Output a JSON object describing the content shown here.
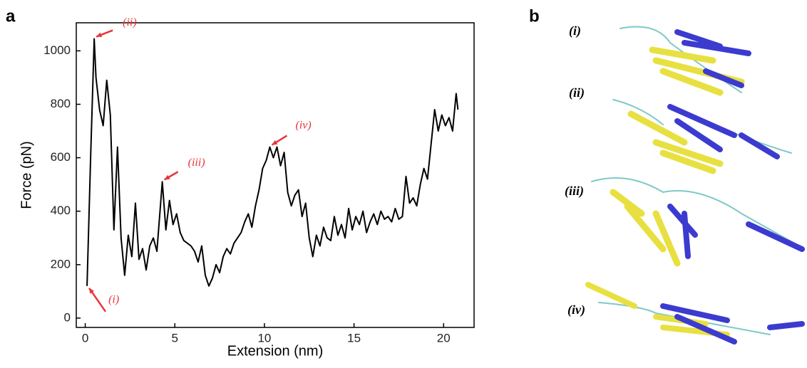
{
  "panel_labels": [
    "a",
    "b"
  ],
  "chart_data": {
    "type": "line",
    "xlabel": "Extension (nm)",
    "ylabel": "Force (pN)",
    "x": [
      0.1,
      0.3,
      0.5,
      0.6,
      0.8,
      1.0,
      1.2,
      1.4,
      1.6,
      1.8,
      2.0,
      2.2,
      2.4,
      2.6,
      2.8,
      3.0,
      3.2,
      3.4,
      3.6,
      3.8,
      4.0,
      4.3,
      4.5,
      4.7,
      4.9,
      5.1,
      5.3,
      5.5,
      5.7,
      5.9,
      6.1,
      6.3,
      6.5,
      6.7,
      6.9,
      7.1,
      7.3,
      7.5,
      7.7,
      7.9,
      8.1,
      8.3,
      8.5,
      8.7,
      8.9,
      9.1,
      9.3,
      9.5,
      9.7,
      9.9,
      10.1,
      10.3,
      10.5,
      10.7,
      10.9,
      11.1,
      11.3,
      11.5,
      11.7,
      11.9,
      12.1,
      12.3,
      12.5,
      12.7,
      12.9,
      13.1,
      13.3,
      13.5,
      13.7,
      13.9,
      14.1,
      14.3,
      14.5,
      14.7,
      14.9,
      15.1,
      15.3,
      15.5,
      15.7,
      15.9,
      16.1,
      16.3,
      16.5,
      16.7,
      16.9,
      17.1,
      17.3,
      17.5,
      17.7,
      17.9,
      18.1,
      18.3,
      18.5,
      18.7,
      18.9,
      19.1,
      19.3,
      19.5,
      19.7,
      19.9,
      20.1,
      20.3,
      20.5,
      20.7,
      20.8
    ],
    "series": [
      {
        "color": "#000000",
        "values": [
          120,
          600,
          1045,
          900,
          780,
          720,
          890,
          760,
          330,
          640,
          300,
          160,
          310,
          230,
          430,
          220,
          260,
          180,
          270,
          300,
          250,
          510,
          330,
          440,
          350,
          390,
          320,
          290,
          280,
          270,
          250,
          210,
          270,
          160,
          120,
          150,
          200,
          170,
          230,
          260,
          240,
          280,
          300,
          320,
          360,
          390,
          340,
          420,
          480,
          560,
          590,
          640,
          600,
          640,
          570,
          620,
          470,
          420,
          460,
          480,
          380,
          430,
          300,
          230,
          310,
          270,
          340,
          300,
          290,
          380,
          310,
          350,
          300,
          410,
          330,
          380,
          350,
          400,
          320,
          360,
          390,
          350,
          400,
          370,
          380,
          360,
          410,
          370,
          380,
          530,
          430,
          450,
          420,
          500,
          560,
          520,
          650,
          780,
          700,
          760,
          720,
          750,
          700,
          840,
          780
        ]
      }
    ],
    "xlim": [
      -0.5,
      21.7
    ],
    "ylim": [
      -35,
      1105
    ],
    "xticks": [
      0,
      5,
      10,
      15,
      20
    ],
    "yticks": [
      0,
      200,
      400,
      600,
      800,
      1000
    ],
    "annotations": [
      {
        "text": "(i)",
        "x": 0.1,
        "y": 120
      },
      {
        "text": "(ii)",
        "x": 0.5,
        "y": 1045
      },
      {
        "text": "(iii)",
        "x": 4.3,
        "y": 510
      },
      {
        "text": "(iv)",
        "x": 10.3,
        "y": 640
      }
    ],
    "annotation_color": "#e8343a"
  },
  "structures": {
    "labels": [
      "(i)",
      "(ii)",
      "(iii)",
      "(iv)"
    ]
  }
}
